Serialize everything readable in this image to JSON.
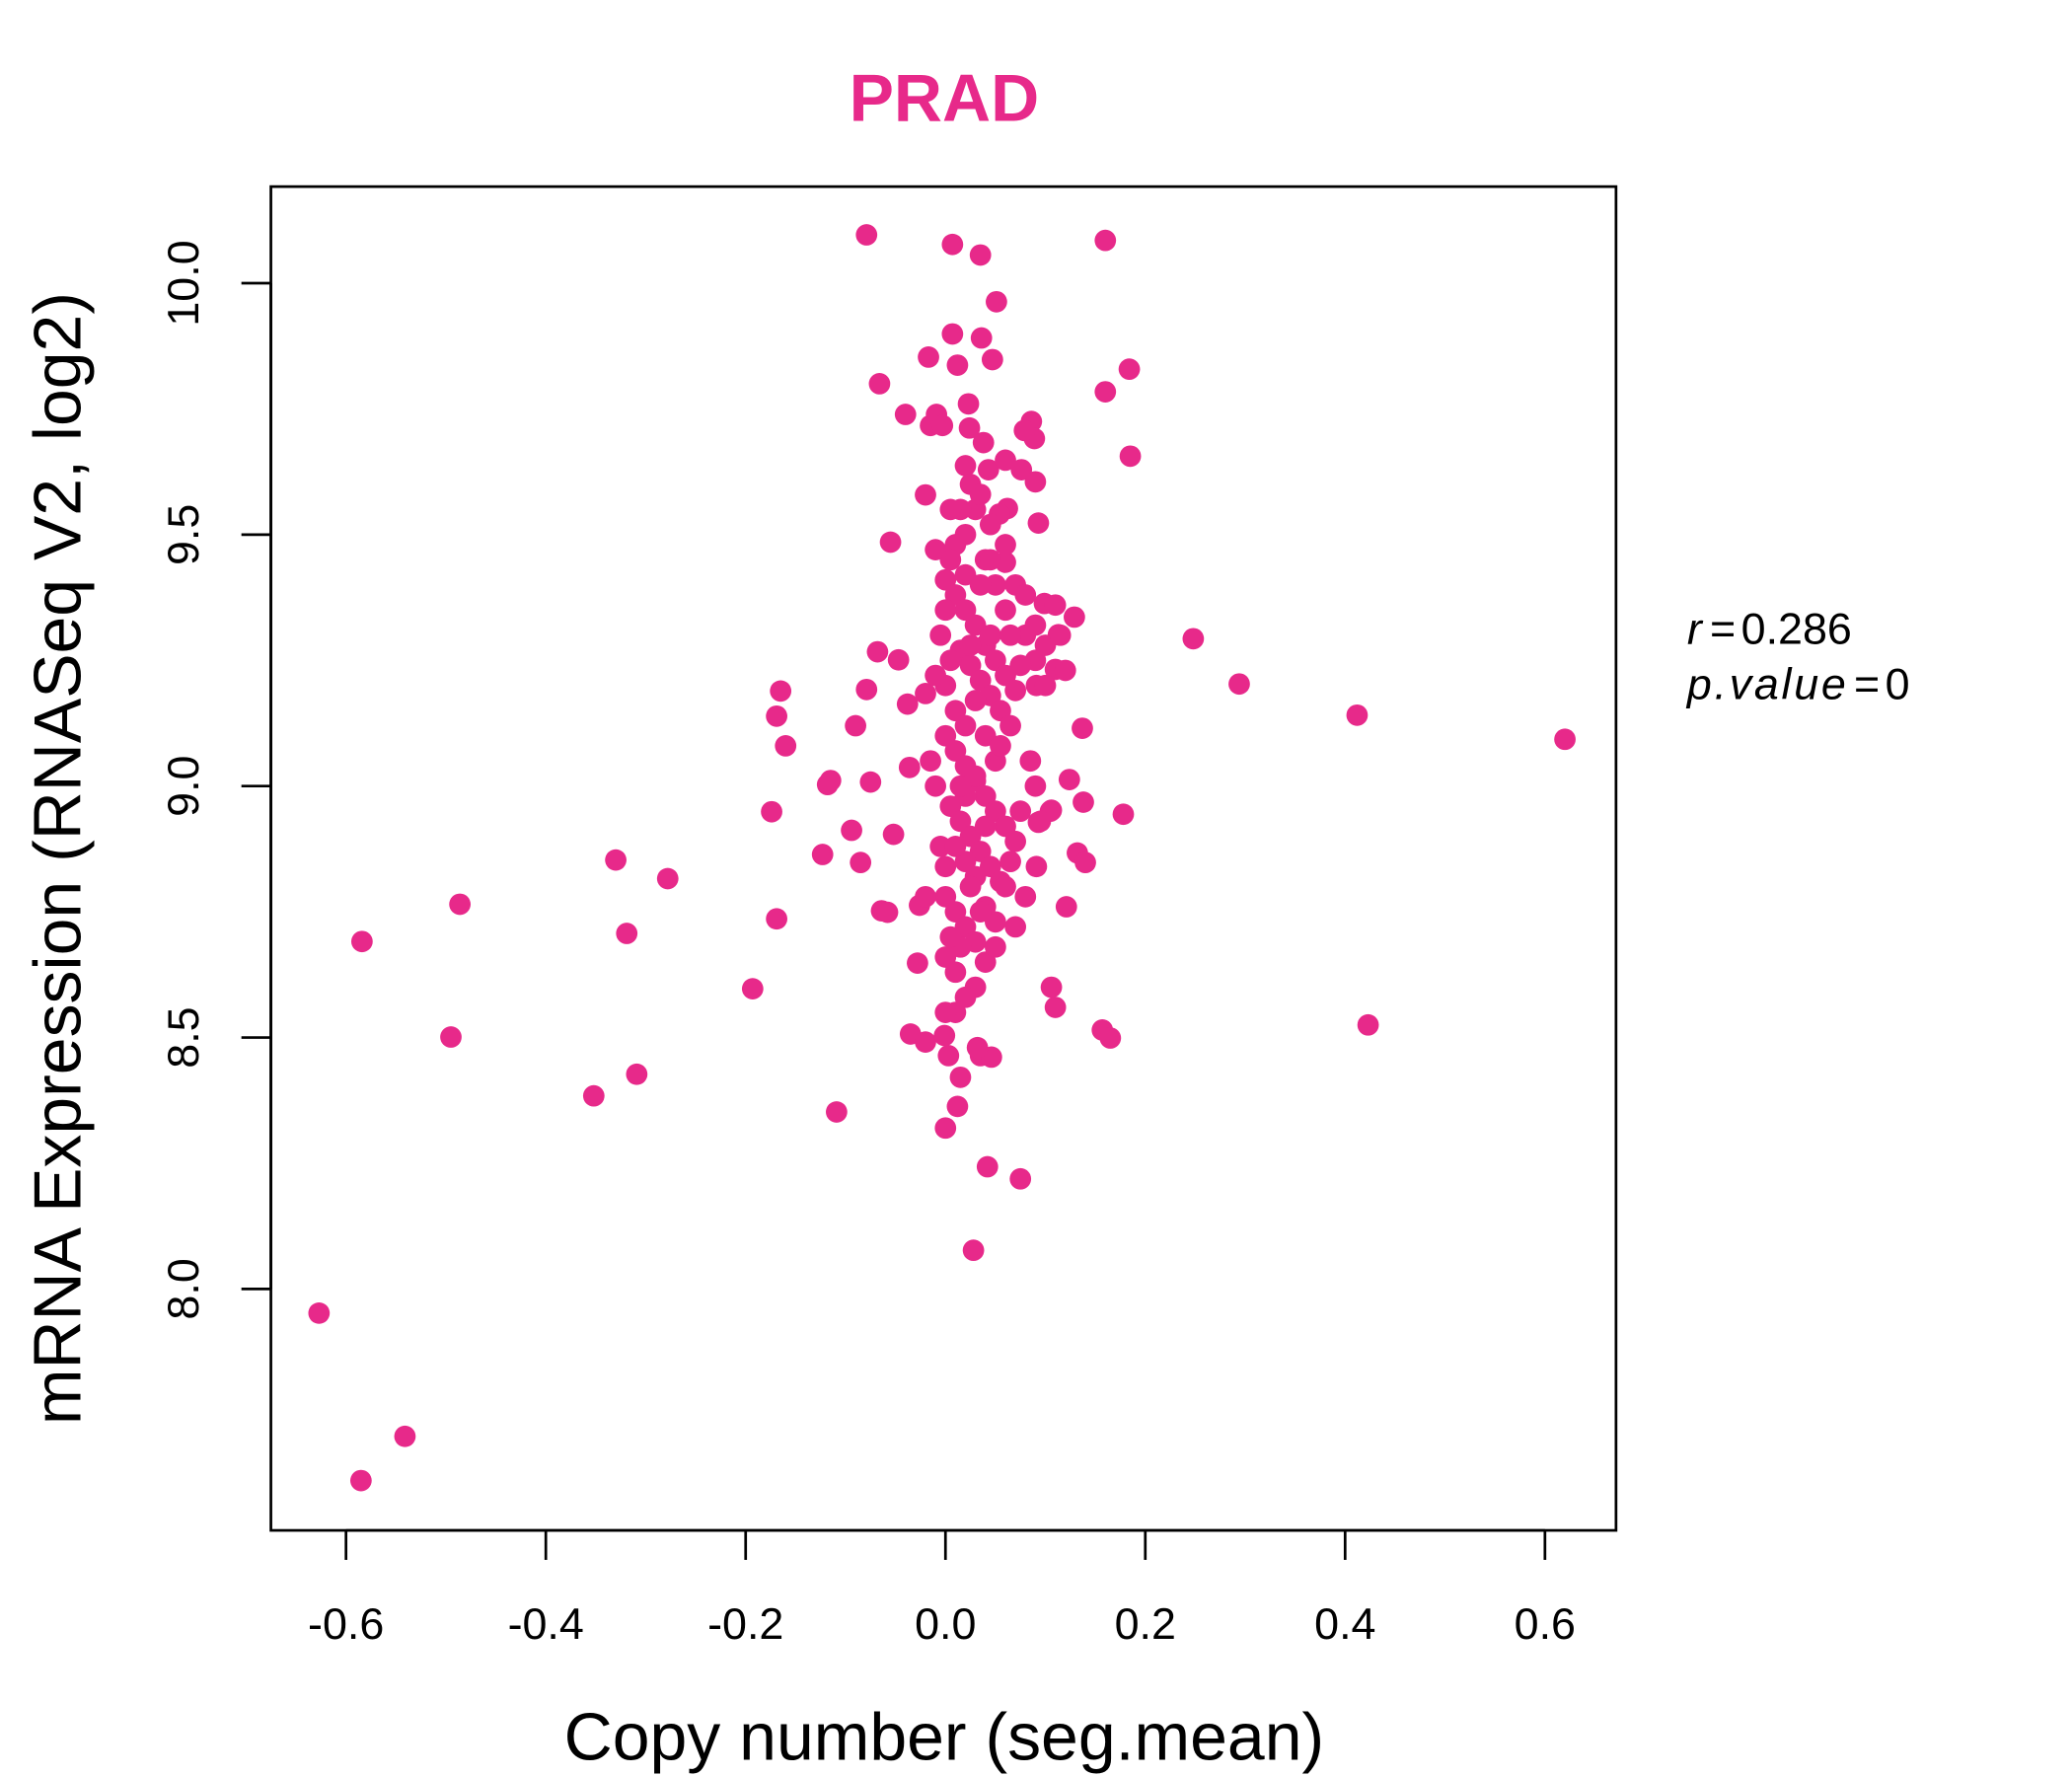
{
  "chart_data": {
    "type": "scatter",
    "title": "PRAD",
    "title_color": "#E7298A",
    "point_color": "#E7298A",
    "xlabel": "Copy number (seg.mean)",
    "ylabel": "mRNA Expression (RNASeq V2, log2)",
    "xlim": [
      -0.675,
      0.675
    ],
    "ylim": [
      7.52,
      10.19
    ],
    "xticks": [
      -0.6,
      -0.4,
      -0.2,
      0.0,
      0.2,
      0.4,
      0.6
    ],
    "xtick_labels": [
      "-0.6",
      "-0.4",
      "-0.2",
      "0.0",
      "0.2",
      "0.4",
      "0.6"
    ],
    "yticks": [
      8.0,
      8.5,
      9.0,
      9.5,
      10.0
    ],
    "ytick_labels": [
      "8.0",
      "8.5",
      "9.0",
      "9.5",
      "10.0"
    ],
    "grid": false,
    "annotation": {
      "r_label": "r",
      "r_value": "0.286",
      "p_label": "p.value",
      "p_value": "0"
    },
    "points": [
      [
        -0.627,
        7.952
      ],
      [
        -0.585,
        7.619
      ],
      [
        -0.541,
        7.707
      ],
      [
        -0.584,
        8.691
      ],
      [
        -0.486,
        8.765
      ],
      [
        -0.495,
        8.501
      ],
      [
        -0.33,
        8.853
      ],
      [
        -0.319,
        8.707
      ],
      [
        -0.278,
        8.816
      ],
      [
        -0.352,
        8.384
      ],
      [
        -0.309,
        8.427
      ],
      [
        -0.193,
        8.597
      ],
      [
        -0.174,
        8.949
      ],
      [
        -0.169,
        8.736
      ],
      [
        -0.165,
        9.189
      ],
      [
        -0.169,
        9.139
      ],
      [
        -0.16,
        9.08
      ],
      [
        -0.123,
        8.864
      ],
      [
        -0.118,
        9.003
      ],
      [
        -0.115,
        9.011
      ],
      [
        -0.109,
        8.352
      ],
      [
        -0.094,
        8.912
      ],
      [
        -0.09,
        9.12
      ],
      [
        -0.085,
        8.848
      ],
      [
        -0.079,
        10.096
      ],
      [
        -0.079,
        9.192
      ],
      [
        -0.075,
        9.008
      ],
      [
        -0.068,
        9.267
      ],
      [
        -0.066,
        9.8
      ],
      [
        -0.064,
        8.752
      ],
      [
        -0.058,
        8.749
      ],
      [
        -0.055,
        9.485
      ],
      [
        -0.052,
        8.904
      ],
      [
        -0.047,
        9.251
      ],
      [
        -0.04,
        9.739
      ],
      [
        -0.038,
        9.163
      ],
      [
        -0.036,
        9.037
      ],
      [
        -0.035,
        8.507
      ],
      [
        -0.028,
        8.648
      ],
      [
        -0.026,
        8.763
      ],
      [
        -0.017,
        9.853
      ],
      [
        -0.02,
        9.579
      ],
      [
        -0.02,
        9.184
      ],
      [
        -0.015,
        9.717
      ],
      [
        -0.009,
        9.739
      ],
      [
        -0.003,
        9.717
      ],
      [
        0.007,
        10.077
      ],
      [
        0.035,
        10.056
      ],
      [
        0.051,
        9.963
      ],
      [
        0.007,
        9.899
      ],
      [
        0.012,
        9.837
      ],
      [
        0.036,
        9.891
      ],
      [
        0.047,
        9.848
      ],
      [
        0.023,
        9.76
      ],
      [
        0.024,
        9.712
      ],
      [
        0.038,
        9.683
      ],
      [
        0.02,
        9.637
      ],
      [
        0.043,
        9.629
      ],
      [
        0.06,
        9.648
      ],
      [
        0.086,
        9.725
      ],
      [
        0.089,
        9.691
      ],
      [
        0.079,
        9.707
      ],
      [
        0.076,
        9.629
      ],
      [
        0.09,
        9.605
      ],
      [
        0.093,
        9.523
      ],
      [
        0.062,
        9.552
      ],
      [
        0.06,
        9.445
      ],
      [
        0.054,
        9.541
      ],
      [
        0.16,
        10.085
      ],
      [
        0.184,
        9.829
      ],
      [
        0.16,
        9.784
      ],
      [
        0.185,
        9.656
      ],
      [
        0.129,
        9.336
      ],
      [
        0.099,
        9.363
      ],
      [
        0.113,
        9.301
      ],
      [
        0.11,
        9.232
      ],
      [
        0.091,
        9.2
      ],
      [
        0.137,
        9.115
      ],
      [
        0.124,
        9.013
      ],
      [
        0.138,
        8.968
      ],
      [
        0.178,
        8.944
      ],
      [
        0.106,
        8.952
      ],
      [
        0.093,
        8.928
      ],
      [
        0.132,
        8.867
      ],
      [
        0.14,
        8.848
      ],
      [
        0.091,
        8.84
      ],
      [
        0.121,
        8.76
      ],
      [
        0.106,
        8.6
      ],
      [
        0.11,
        8.56
      ],
      [
        0.157,
        8.515
      ],
      [
        0.165,
        8.499
      ],
      [
        0.075,
        8.219
      ],
      [
        0.042,
        8.243
      ],
      [
        0.028,
        8.077
      ],
      [
        0.0,
        8.32
      ],
      [
        0.012,
        8.363
      ],
      [
        0.015,
        8.421
      ],
      [
        0.035,
        8.464
      ],
      [
        0.046,
        8.461
      ],
      [
        0.003,
        8.464
      ],
      [
        0.032,
        8.48
      ],
      [
        -0.02,
        8.491
      ],
      [
        -0.001,
        8.504
      ],
      [
        0.248,
        9.293
      ],
      [
        0.294,
        9.203
      ],
      [
        0.412,
        9.141
      ],
      [
        0.423,
        8.525
      ],
      [
        0.62,
        9.093
      ],
      [
        0.0,
        9.41
      ],
      [
        0.01,
        9.38
      ],
      [
        0.02,
        9.35
      ],
      [
        0.03,
        9.32
      ],
      [
        0.04,
        9.28
      ],
      [
        0.05,
        9.25
      ],
      [
        0.06,
        9.22
      ],
      [
        0.07,
        9.19
      ],
      [
        -0.005,
        9.3
      ],
      [
        0.015,
        9.27
      ],
      [
        0.025,
        9.24
      ],
      [
        0.035,
        9.21
      ],
      [
        0.045,
        9.18
      ],
      [
        0.055,
        9.15
      ],
      [
        0.065,
        9.12
      ],
      [
        0.0,
        9.1
      ],
      [
        0.01,
        9.07
      ],
      [
        0.02,
        9.04
      ],
      [
        0.03,
        9.01
      ],
      [
        0.04,
        8.98
      ],
      [
        0.05,
        8.95
      ],
      [
        0.06,
        8.92
      ],
      [
        0.07,
        8.89
      ],
      [
        0.005,
        8.96
      ],
      [
        0.015,
        8.93
      ],
      [
        0.025,
        8.9
      ],
      [
        0.035,
        8.87
      ],
      [
        0.045,
        8.84
      ],
      [
        0.055,
        8.81
      ],
      [
        0.0,
        8.78
      ],
      [
        0.01,
        8.75
      ],
      [
        0.02,
        8.72
      ],
      [
        0.03,
        8.69
      ],
      [
        0.04,
        8.76
      ],
      [
        0.05,
        8.73
      ],
      [
        0.0,
        8.66
      ],
      [
        0.01,
        8.63
      ],
      [
        0.02,
        8.85
      ],
      [
        0.03,
        8.82
      ],
      [
        0.04,
        9.45
      ],
      [
        0.02,
        9.5
      ],
      [
        0.03,
        9.55
      ],
      [
        0.01,
        9.48
      ],
      [
        0.05,
        9.4
      ],
      [
        0.06,
        9.35
      ],
      [
        0.08,
        9.3
      ],
      [
        0.09,
        9.25
      ],
      [
        0.1,
        9.28
      ],
      [
        0.11,
        9.36
      ],
      [
        0.085,
        9.05
      ],
      [
        0.09,
        9.0
      ],
      [
        0.075,
        8.95
      ],
      [
        0.065,
        8.85
      ],
      [
        0.08,
        8.78
      ],
      [
        0.07,
        8.72
      ],
      [
        0.06,
        8.8
      ],
      [
        0.0,
        9.2
      ],
      [
        0.01,
        9.15
      ],
      [
        0.02,
        9.12
      ],
      [
        0.03,
        9.17
      ],
      [
        0.04,
        9.1
      ],
      [
        0.05,
        9.05
      ],
      [
        -0.01,
        9.0
      ],
      [
        -0.005,
        8.88
      ],
      [
        -0.01,
        9.22
      ],
      [
        0.0,
        9.35
      ],
      [
        0.005,
        9.45
      ],
      [
        0.015,
        9.55
      ],
      [
        0.025,
        9.6
      ],
      [
        0.035,
        9.58
      ],
      [
        0.045,
        9.52
      ],
      [
        0.02,
        9.42
      ],
      [
        0.03,
        9.02
      ],
      [
        0.04,
        8.92
      ],
      [
        0.02,
        8.98
      ],
      [
        0.01,
        8.88
      ],
      [
        0.0,
        8.84
      ],
      [
        -0.02,
        8.78
      ],
      [
        -0.015,
        9.05
      ],
      [
        0.005,
        9.25
      ],
      [
        0.015,
        9.0
      ],
      [
        0.025,
        8.8
      ],
      [
        0.035,
        8.75
      ],
      [
        0.045,
        9.3
      ],
      [
        0.055,
        9.08
      ],
      [
        0.065,
        9.3
      ],
      [
        0.075,
        9.24
      ],
      [
        0.1,
        9.2
      ],
      [
        0.105,
        8.95
      ],
      [
        0.095,
        8.93
      ],
      [
        0.015,
        8.68
      ],
      [
        0.005,
        8.7
      ],
      [
        0.03,
        8.6
      ],
      [
        0.02,
        8.58
      ],
      [
        0.01,
        8.55
      ],
      [
        0.04,
        8.65
      ],
      [
        0.05,
        8.68
      ],
      [
        0.005,
        9.55
      ],
      [
        -0.01,
        9.47
      ],
      [
        0.06,
        9.48
      ],
      [
        0.07,
        9.4
      ],
      [
        0.08,
        9.38
      ],
      [
        0.09,
        9.32
      ],
      [
        0.115,
        9.3
      ],
      [
        0.12,
        9.23
      ],
      [
        0.0,
        8.55
      ],
      [
        0.025,
        9.28
      ],
      [
        0.035,
        9.4
      ],
      [
        0.045,
        9.45
      ]
    ]
  }
}
